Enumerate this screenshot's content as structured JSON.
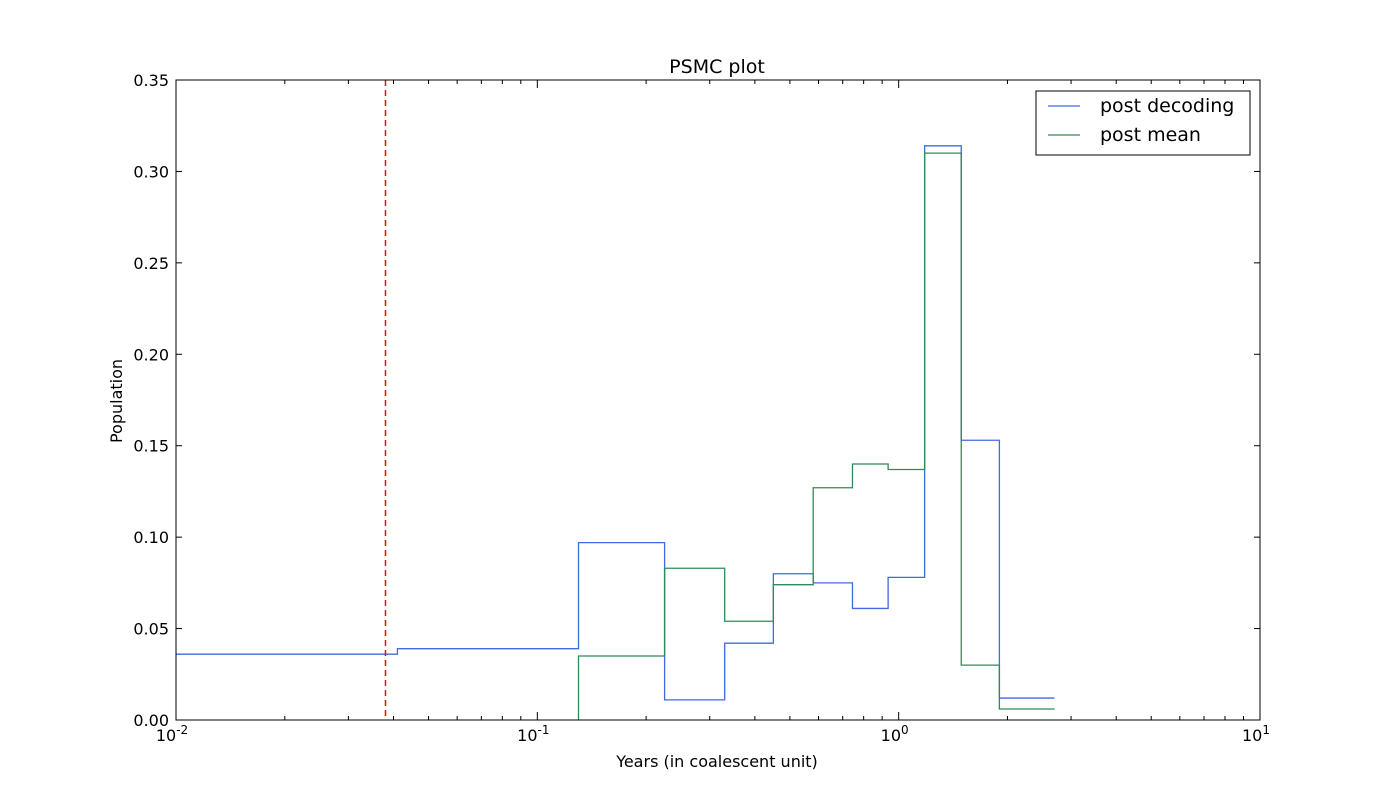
{
  "chart_data": {
    "type": "line",
    "title": "PSMC plot",
    "xlabel": "Years (in coalescent unit)",
    "ylabel": "Population",
    "xscale": "log",
    "xlim": [
      0.01,
      10
    ],
    "ylim": [
      0,
      0.35
    ],
    "x_ticks": [
      {
        "value": 0.01,
        "base": "10",
        "exp": "-2"
      },
      {
        "value": 0.1,
        "base": "10",
        "exp": "-1"
      },
      {
        "value": 1,
        "base": "10",
        "exp": "0"
      },
      {
        "value": 10,
        "base": "10",
        "exp": "1"
      }
    ],
    "y_ticks": [
      {
        "value": 0.0,
        "label": "0.00"
      },
      {
        "value": 0.05,
        "label": "0.05"
      },
      {
        "value": 0.1,
        "label": "0.10"
      },
      {
        "value": 0.15,
        "label": "0.15"
      },
      {
        "value": 0.2,
        "label": "0.20"
      },
      {
        "value": 0.25,
        "label": "0.25"
      },
      {
        "value": 0.3,
        "label": "0.30"
      },
      {
        "value": 0.35,
        "label": "0.35"
      }
    ],
    "grid": false,
    "legend_position": "top-right",
    "step": "post",
    "vline": {
      "x": 0.038,
      "color": "#ff0000",
      "style": "dashed"
    },
    "series": [
      {
        "name": "post decoding",
        "color": "#4169e1",
        "x": [
          0.01,
          0.041,
          0.13,
          0.225,
          0.33,
          0.45,
          0.58,
          0.745,
          0.935,
          1.18,
          1.49,
          1.9,
          2.7
        ],
        "y": [
          0.036,
          0.039,
          0.097,
          0.011,
          0.042,
          0.08,
          0.075,
          0.061,
          0.078,
          0.314,
          0.153,
          0.012,
          0.012
        ]
      },
      {
        "name": "post mean",
        "color": "#2e8b57",
        "x": [
          0.13,
          0.225,
          0.33,
          0.45,
          0.58,
          0.745,
          0.935,
          1.18,
          1.49,
          1.9,
          2.7
        ],
        "y": [
          0.035,
          0.083,
          0.054,
          0.074,
          0.127,
          0.14,
          0.137,
          0.31,
          0.03,
          0.006,
          0.006
        ],
        "start_from_zero": true
      }
    ]
  }
}
